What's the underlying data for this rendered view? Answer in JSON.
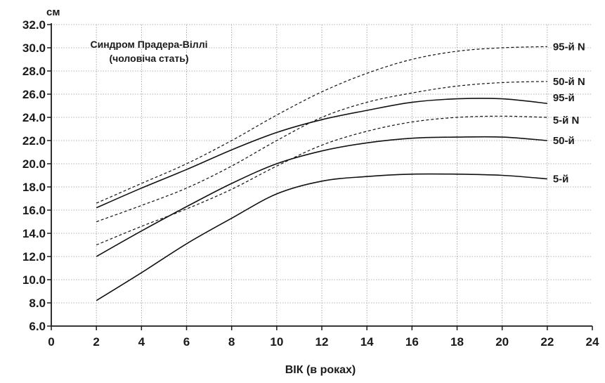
{
  "chart_data": {
    "type": "line",
    "title_lines": [
      "Синдром Прадера-Віллі",
      "(чоловіча стать)"
    ],
    "xlabel": "ВІК (в роках)",
    "ylabel": "см",
    "xlim": [
      0,
      24
    ],
    "ylim": [
      6,
      32
    ],
    "x_ticks": [
      "0",
      "2",
      "4",
      "6",
      "8",
      "10",
      "12",
      "14",
      "16",
      "18",
      "20",
      "22",
      "24"
    ],
    "y_ticks": [
      "6.0",
      "8.0",
      "10.0",
      "12.0",
      "14.0",
      "16.0",
      "18.0",
      "20.0",
      "22.0",
      "24.0",
      "26.0",
      "28.0",
      "30.0",
      "32.0"
    ],
    "grid": true,
    "series": [
      {
        "name": "95-й N",
        "style": "dashed",
        "x": [
          2,
          4,
          6,
          8,
          10,
          12,
          14,
          16,
          18,
          20,
          22
        ],
        "y": [
          16.6,
          18.3,
          20.0,
          22.0,
          24.2,
          26.2,
          27.8,
          29.0,
          29.7,
          30.0,
          30.1
        ]
      },
      {
        "name": "50-й N",
        "style": "dashed",
        "x": [
          2,
          4,
          6,
          8,
          10,
          12,
          14,
          16,
          18,
          20,
          22
        ],
        "y": [
          15.0,
          16.4,
          17.9,
          19.8,
          22.0,
          24.0,
          25.3,
          26.1,
          26.7,
          27.0,
          27.1
        ]
      },
      {
        "name": "5-й N",
        "style": "dashed",
        "x": [
          2,
          4,
          6,
          8,
          10,
          12,
          14,
          16,
          18,
          20,
          22
        ],
        "y": [
          13.0,
          14.6,
          16.1,
          17.8,
          19.8,
          21.6,
          22.8,
          23.6,
          24.0,
          24.1,
          24.0
        ]
      },
      {
        "name": "95-й",
        "style": "solid",
        "x": [
          2,
          4,
          6,
          8,
          10,
          12,
          14,
          16,
          18,
          20,
          22
        ],
        "y": [
          16.2,
          17.9,
          19.5,
          21.2,
          22.7,
          23.8,
          24.6,
          25.3,
          25.6,
          25.6,
          25.2
        ]
      },
      {
        "name": "50-й",
        "style": "solid",
        "x": [
          2,
          4,
          6,
          8,
          10,
          12,
          14,
          16,
          18,
          20,
          22
        ],
        "y": [
          12.0,
          14.2,
          16.3,
          18.3,
          20.0,
          21.1,
          21.8,
          22.2,
          22.3,
          22.3,
          22.0
        ]
      },
      {
        "name": "5-й",
        "style": "solid",
        "x": [
          2,
          4,
          6,
          8,
          10,
          12,
          14,
          16,
          18,
          20,
          22
        ],
        "y": [
          8.2,
          10.6,
          13.1,
          15.3,
          17.4,
          18.5,
          18.9,
          19.1,
          19.1,
          19.0,
          18.7
        ]
      }
    ]
  }
}
